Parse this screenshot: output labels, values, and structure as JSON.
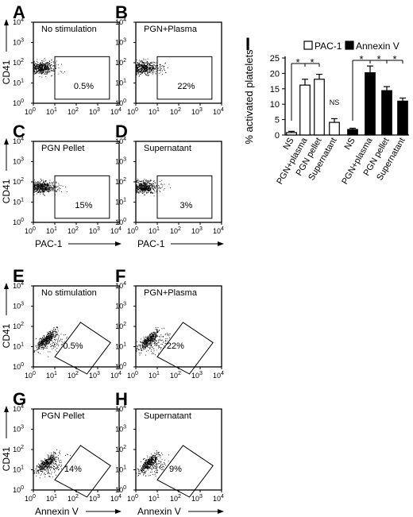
{
  "panels": [
    {
      "letter": "A",
      "title": "No stimulation",
      "percent": "0.5%",
      "gate": "rect",
      "show_ylabel": true,
      "show_xlabel": false
    },
    {
      "letter": "B",
      "title": "PGN+Plasma",
      "percent": "22%",
      "gate": "rect",
      "show_ylabel": false,
      "show_xlabel": false
    },
    {
      "letter": "C",
      "title": "PGN Pellet",
      "percent": "15%",
      "gate": "rect",
      "show_ylabel": true,
      "show_xlabel": true
    },
    {
      "letter": "D",
      "title": "Supernatant",
      "percent": "3%",
      "gate": "rect",
      "show_ylabel": false,
      "show_xlabel": true
    },
    {
      "letter": "E",
      "title": "No stimulation",
      "percent": "0.5%",
      "gate": "poly",
      "show_ylabel": true,
      "show_xlabel": false
    },
    {
      "letter": "F",
      "title": "PGN+Plasma",
      "percent": "22%",
      "gate": "poly",
      "show_ylabel": false,
      "show_xlabel": false
    },
    {
      "letter": "G",
      "title": "PGN Pellet",
      "percent": "14%",
      "gate": "poly",
      "show_ylabel": true,
      "show_xlabel": true
    },
    {
      "letter": "H",
      "title": "Supernatant",
      "percent": "9%",
      "gate": "poly",
      "show_ylabel": false,
      "show_xlabel": true
    }
  ],
  "flow_axes": {
    "ylabel": "CD41",
    "xlabel_top": "PAC-1",
    "xlabel_bottom": "Annexin V",
    "tick_mantissa": "10",
    "tick_exponents": [
      "0",
      "1",
      "2",
      "3",
      "4"
    ]
  },
  "chart_data": {
    "type": "bar",
    "panel_letter": "I",
    "ylabel": "% activated platelets",
    "ylim": [
      0,
      25
    ],
    "yticks": [
      0,
      5,
      10,
      15,
      20,
      25
    ],
    "categories": [
      "NS",
      "PGN+plasma",
      "PGN pellet",
      "Supernatant"
    ],
    "series": [
      {
        "name": "PAC-1",
        "fill": "#ffffff",
        "values": [
          0.8,
          16.2,
          18.1,
          4.1
        ],
        "errors": [
          0.4,
          1.9,
          1.6,
          1.2
        ]
      },
      {
        "name": "Annexin V",
        "fill": "#000000",
        "values": [
          1.8,
          20.2,
          14.4,
          11.0
        ],
        "errors": [
          0.4,
          2.2,
          1.3,
          1.0
        ]
      }
    ],
    "annotations": [
      "*",
      "*",
      "NS",
      "*",
      "*",
      "*"
    ],
    "legend_position": "top"
  }
}
